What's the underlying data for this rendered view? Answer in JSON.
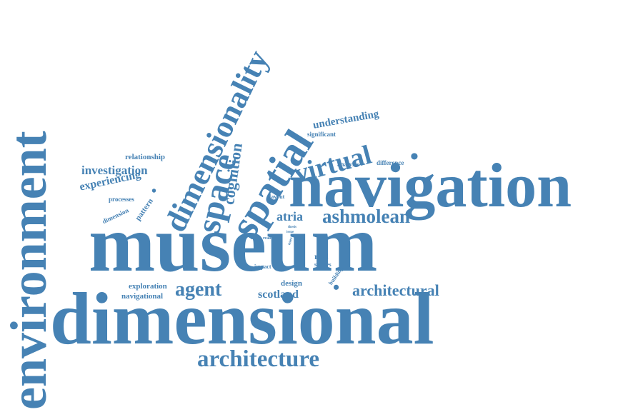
{
  "color": "#4682b4",
  "words": {
    "museum": "museum",
    "dimensional": "dimensional",
    "navigation": "navigation",
    "environment": "environment",
    "dimensionality": "dimensionality",
    "spatial": "spatial",
    "space": "space",
    "architecture": "architecture",
    "virtual": "virtual",
    "ashmolean": "ashmolean",
    "architectural": "architectural",
    "agent": "agent",
    "cognition": "cognition",
    "investigation": "investigation",
    "experiencing": "experiencing",
    "understanding": "understanding",
    "atria": "atria",
    "scotland": "scotland",
    "relationship": "relationship",
    "exploration": "exploration",
    "navigational": "navigational",
    "design": "design",
    "real": "real",
    "pattern": "pattern",
    "analysis": "analysis",
    "difference": "difference",
    "significant": "significant",
    "processes": "processes",
    "dimension": "dimension",
    "layout": "layout",
    "studies": "studies",
    "impact": "impact",
    "building": "building",
    "reality": "reality",
    "thesis": "thesis",
    "issue": "issue",
    "user": "user",
    "dot_i": "•",
    "dot_o": "•",
    "dot_n": "•"
  }
}
